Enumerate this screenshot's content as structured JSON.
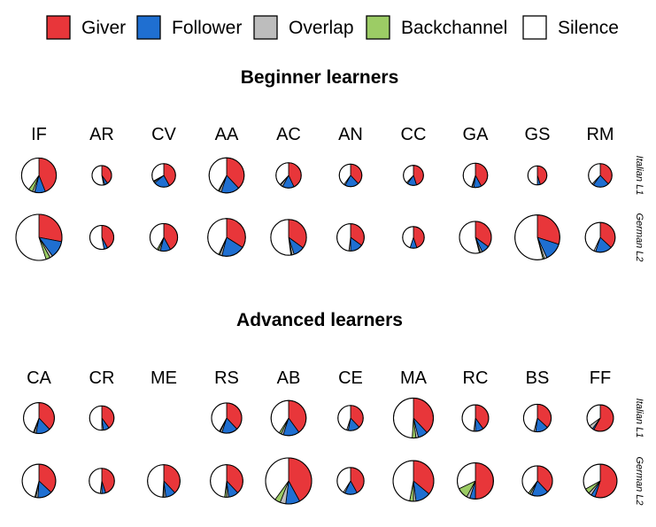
{
  "chart_data": {
    "type": "pie",
    "legend": [
      {
        "name": "Giver",
        "color": "#e8363a"
      },
      {
        "name": "Follower",
        "color": "#1f6fd1"
      },
      {
        "name": "Overlap",
        "color": "#bdbdbd"
      },
      {
        "name": "Backchannel",
        "color": "#9ccc65"
      },
      {
        "name": "Silence",
        "color": "#ffffff"
      }
    ],
    "legend_position": "top",
    "row_labels": [
      "Italian L1",
      "German L2"
    ],
    "panels": [
      {
        "title": "Beginner learners",
        "columns": [
          "IF",
          "AR",
          "CV",
          "AA",
          "AC",
          "AN",
          "CC",
          "GA",
          "GS",
          "RM"
        ],
        "rows": [
          [
            {
              "total": 0.57,
              "values": {
                "Giver": 0.44,
                "Follower": 0.1,
                "Overlap": 0.02,
                "Backchannel": 0.04,
                "Silence": 0.4
              }
            },
            {
              "total": 0.18,
              "values": {
                "Giver": 0.4,
                "Follower": 0.05,
                "Overlap": 0.02,
                "Backchannel": 0.0,
                "Silence": 0.53
              }
            },
            {
              "total": 0.26,
              "values": {
                "Giver": 0.42,
                "Follower": 0.22,
                "Overlap": 0.02,
                "Backchannel": 0.01,
                "Silence": 0.33
              }
            },
            {
              "total": 0.58,
              "values": {
                "Giver": 0.38,
                "Follower": 0.17,
                "Overlap": 0.02,
                "Backchannel": 0.01,
                "Silence": 0.42
              }
            },
            {
              "total": 0.3,
              "values": {
                "Giver": 0.43,
                "Follower": 0.15,
                "Overlap": 0.03,
                "Backchannel": 0.01,
                "Silence": 0.38
              }
            },
            {
              "total": 0.24,
              "values": {
                "Giver": 0.38,
                "Follower": 0.2,
                "Overlap": 0.02,
                "Backchannel": 0.0,
                "Silence": 0.4
              }
            },
            {
              "total": 0.19,
              "values": {
                "Giver": 0.45,
                "Follower": 0.15,
                "Overlap": 0.02,
                "Backchannel": 0.0,
                "Silence": 0.38
              }
            },
            {
              "total": 0.28,
              "values": {
                "Giver": 0.42,
                "Follower": 0.1,
                "Overlap": 0.02,
                "Backchannel": 0.01,
                "Silence": 0.45
              }
            },
            {
              "total": 0.17,
              "values": {
                "Giver": 0.45,
                "Follower": 0.05,
                "Overlap": 0.0,
                "Backchannel": 0.0,
                "Silence": 0.5
              }
            },
            {
              "total": 0.26,
              "values": {
                "Giver": 0.38,
                "Follower": 0.22,
                "Overlap": 0.02,
                "Backchannel": 0.0,
                "Silence": 0.38
              }
            }
          ],
          [
            {
              "total": 1.0,
              "values": {
                "Giver": 0.28,
                "Follower": 0.12,
                "Overlap": 0.02,
                "Backchannel": 0.03,
                "Silence": 0.55
              }
            },
            {
              "total": 0.27,
              "values": {
                "Giver": 0.42,
                "Follower": 0.05,
                "Overlap": 0.0,
                "Backchannel": 0.0,
                "Silence": 0.53
              }
            },
            {
              "total": 0.36,
              "values": {
                "Giver": 0.42,
                "Follower": 0.12,
                "Overlap": 0.02,
                "Backchannel": 0.02,
                "Silence": 0.42
              }
            },
            {
              "total": 0.67,
              "values": {
                "Giver": 0.34,
                "Follower": 0.2,
                "Overlap": 0.02,
                "Backchannel": 0.01,
                "Silence": 0.43
              }
            },
            {
              "total": 0.6,
              "values": {
                "Giver": 0.35,
                "Follower": 0.1,
                "Overlap": 0.02,
                "Backchannel": 0.01,
                "Silence": 0.52
              }
            },
            {
              "total": 0.35,
              "values": {
                "Giver": 0.35,
                "Follower": 0.15,
                "Overlap": 0.02,
                "Backchannel": 0.0,
                "Silence": 0.48
              }
            },
            {
              "total": 0.22,
              "values": {
                "Giver": 0.45,
                "Follower": 0.1,
                "Overlap": 0.0,
                "Backchannel": 0.0,
                "Silence": 0.45
              }
            },
            {
              "total": 0.48,
              "values": {
                "Giver": 0.35,
                "Follower": 0.08,
                "Overlap": 0.02,
                "Backchannel": 0.01,
                "Silence": 0.54
              }
            },
            {
              "total": 0.95,
              "values": {
                "Giver": 0.3,
                "Follower": 0.13,
                "Overlap": 0.02,
                "Backchannel": 0.01,
                "Silence": 0.54
              }
            },
            {
              "total": 0.42,
              "values": {
                "Giver": 0.37,
                "Follower": 0.18,
                "Overlap": 0.02,
                "Backchannel": 0.0,
                "Silence": 0.43
              }
            }
          ]
        ]
      },
      {
        "title": "Advanced learners",
        "columns": [
          "CA",
          "CR",
          "ME",
          "RS",
          "AB",
          "CE",
          "MA",
          "RC",
          "BS",
          "FF"
        ],
        "rows": [
          [
            {
              "total": 0.45,
              "values": {
                "Giver": 0.38,
                "Follower": 0.15,
                "Overlap": 0.02,
                "Backchannel": 0.01,
                "Silence": 0.44
              }
            },
            {
              "total": 0.28,
              "values": {
                "Giver": 0.4,
                "Follower": 0.08,
                "Overlap": 0.02,
                "Backchannel": 0.0,
                "Silence": 0.5
              }
            },
            null,
            {
              "total": 0.43,
              "values": {
                "Giver": 0.38,
                "Follower": 0.17,
                "Overlap": 0.02,
                "Backchannel": 0.01,
                "Silence": 0.42
              }
            },
            {
              "total": 0.58,
              "values": {
                "Giver": 0.4,
                "Follower": 0.15,
                "Overlap": 0.02,
                "Backchannel": 0.02,
                "Silence": 0.41
              }
            },
            {
              "total": 0.3,
              "values": {
                "Giver": 0.38,
                "Follower": 0.15,
                "Overlap": 0.02,
                "Backchannel": 0.0,
                "Silence": 0.45
              }
            },
            {
              "total": 0.75,
              "values": {
                "Giver": 0.38,
                "Follower": 0.08,
                "Overlap": 0.02,
                "Backchannel": 0.03,
                "Silence": 0.49
              }
            },
            {
              "total": 0.33,
              "values": {
                "Giver": 0.4,
                "Follower": 0.1,
                "Overlap": 0.02,
                "Backchannel": 0.0,
                "Silence": 0.48
              }
            },
            {
              "total": 0.36,
              "values": {
                "Giver": 0.37,
                "Follower": 0.15,
                "Overlap": 0.02,
                "Backchannel": 0.0,
                "Silence": 0.46
              }
            },
            {
              "total": 0.33,
              "values": {
                "Giver": 0.58,
                "Follower": 0.02,
                "Overlap": 0.05,
                "Backchannel": 0.0,
                "Silence": 0.35
              }
            }
          ],
          [
            {
              "total": 0.53,
              "values": {
                "Giver": 0.37,
                "Follower": 0.14,
                "Overlap": 0.02,
                "Backchannel": 0.01,
                "Silence": 0.46
              }
            },
            {
              "total": 0.3,
              "values": {
                "Giver": 0.45,
                "Follower": 0.05,
                "Overlap": 0.02,
                "Backchannel": 0.0,
                "Silence": 0.48
              }
            },
            {
              "total": 0.5,
              "values": {
                "Giver": 0.38,
                "Follower": 0.1,
                "Overlap": 0.02,
                "Backchannel": 0.01,
                "Silence": 0.49
              }
            },
            {
              "total": 0.5,
              "values": {
                "Giver": 0.38,
                "Follower": 0.1,
                "Overlap": 0.02,
                "Backchannel": 0.02,
                "Silence": 0.48
              }
            },
            {
              "total": 1.0,
              "values": {
                "Giver": 0.42,
                "Follower": 0.1,
                "Overlap": 0.04,
                "Backchannel": 0.04,
                "Silence": 0.4
              }
            },
            {
              "total": 0.34,
              "values": {
                "Giver": 0.42,
                "Follower": 0.15,
                "Overlap": 0.02,
                "Backchannel": 0.0,
                "Silence": 0.41
              }
            },
            {
              "total": 0.78,
              "values": {
                "Giver": 0.36,
                "Follower": 0.12,
                "Overlap": 0.02,
                "Backchannel": 0.03,
                "Silence": 0.47
              }
            },
            {
              "total": 0.62,
              "values": {
                "Giver": 0.5,
                "Follower": 0.05,
                "Overlap": 0.03,
                "Backchannel": 0.1,
                "Silence": 0.32
              }
            },
            {
              "total": 0.43,
              "values": {
                "Giver": 0.38,
                "Follower": 0.18,
                "Overlap": 0.02,
                "Backchannel": 0.02,
                "Silence": 0.4
              }
            },
            {
              "total": 0.53,
              "values": {
                "Giver": 0.55,
                "Follower": 0.04,
                "Overlap": 0.03,
                "Backchannel": 0.05,
                "Silence": 0.33
              }
            }
          ]
        ]
      }
    ]
  }
}
